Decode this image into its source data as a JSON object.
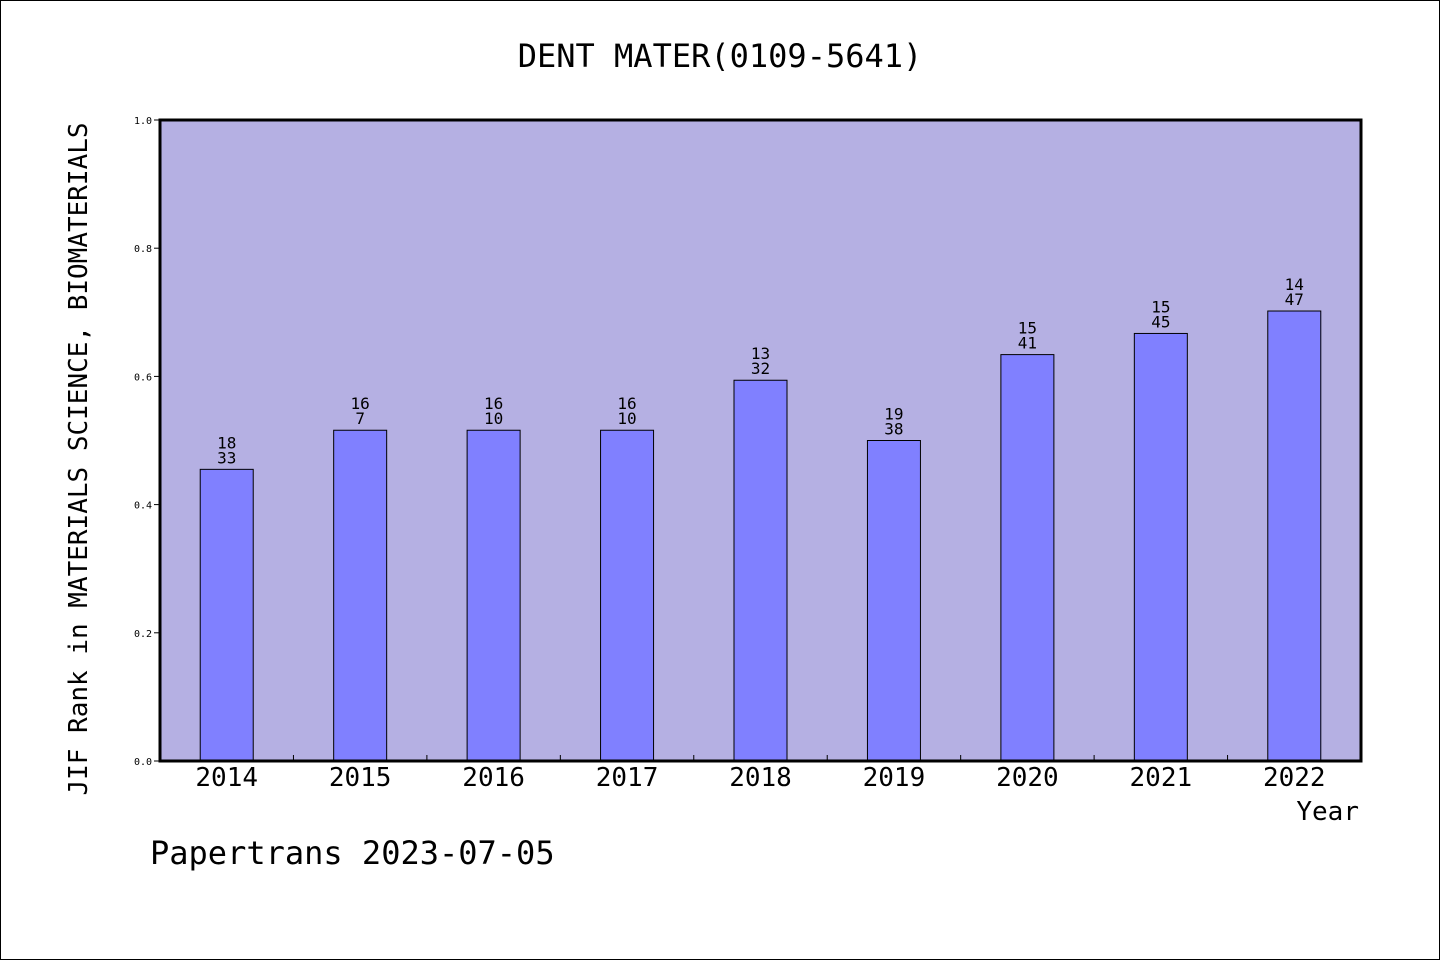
{
  "chart_data": {
    "type": "bar",
    "title": "DENT MATER(0109-5641)",
    "xlabel": "Year",
    "ylabel": "JIF Rank in MATERIALS SCIENCE, BIOMATERIALS",
    "footer": "Papertrans 2023-07-05",
    "categories": [
      "2014",
      "2015",
      "2016",
      "2017",
      "2018",
      "2019",
      "2020",
      "2021",
      "2022"
    ],
    "values": [
      0.455,
      0.516,
      0.516,
      0.516,
      0.594,
      0.5,
      0.634,
      0.667,
      0.702
    ],
    "labels_top": [
      "18",
      "16",
      "16",
      "16",
      "13",
      "19",
      "15",
      "15",
      "14"
    ],
    "labels_bottom": [
      "33",
      "7",
      "10",
      "10",
      "32",
      "38",
      "41",
      "45",
      "47"
    ],
    "ylim": [
      0,
      1.0
    ],
    "yticks": [
      "0.0",
      "0.2",
      "0.4",
      "0.6",
      "0.8",
      "1.0"
    ],
    "grid": false,
    "colors": {
      "plot_background": "#b5b0e3",
      "bar_fill": "#8080ff",
      "bar_stroke": "#000000"
    }
  }
}
